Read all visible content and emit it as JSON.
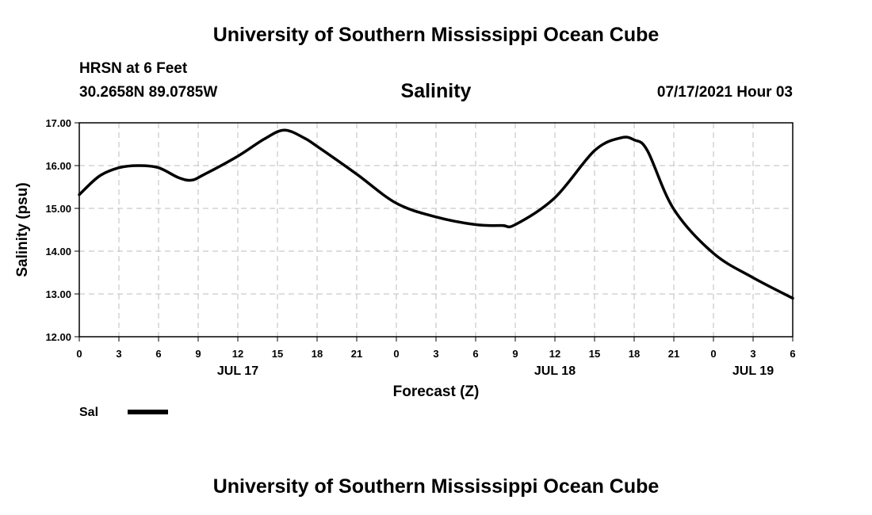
{
  "header": {
    "title": "University of Southern Mississippi Ocean Cube",
    "station_name": "HRSN at 6 Feet",
    "station_coords": "30.2658N  89.0785W",
    "chart_title": "Salinity",
    "run_time": "07/17/2021 Hour 03"
  },
  "footer": {
    "title": "University of Southern Mississippi Ocean Cube"
  },
  "chart_data": {
    "type": "line",
    "title": "Salinity",
    "xlabel": "Forecast (Z)",
    "ylabel": "Salinity (psu)",
    "ylim": [
      12.0,
      17.0
    ],
    "xlim": [
      0,
      54
    ],
    "y_ticks": [
      "12.00",
      "13.00",
      "14.00",
      "15.00",
      "16.00",
      "17.00"
    ],
    "x_ticks": [
      "0",
      "3",
      "6",
      "9",
      "12",
      "15",
      "18",
      "21",
      "0",
      "3",
      "6",
      "9",
      "12",
      "15",
      "18",
      "21",
      "0",
      "3",
      "6"
    ],
    "date_labels": [
      {
        "label": "JUL 17",
        "hour": 12
      },
      {
        "label": "JUL 18",
        "hour": 36
      },
      {
        "label": "JUL 19",
        "hour": 51
      }
    ],
    "grid": true,
    "legend": {
      "position": "bottom-left",
      "entries": [
        {
          "name": "Sal",
          "color": "#000000"
        }
      ]
    },
    "series": [
      {
        "name": "Sal",
        "color": "#000000",
        "x": [
          0,
          1.5,
          3,
          4.5,
          6,
          7.5,
          8.5,
          9.5,
          12,
          14,
          15.5,
          17,
          18,
          21,
          24,
          27,
          30,
          32,
          33,
          36,
          39,
          41,
          42,
          43,
          45,
          48,
          51,
          54
        ],
        "y": [
          15.32,
          15.75,
          15.95,
          16.0,
          15.95,
          15.72,
          15.66,
          15.8,
          16.22,
          16.62,
          16.83,
          16.65,
          16.45,
          15.8,
          15.12,
          14.8,
          14.62,
          14.6,
          14.62,
          15.25,
          16.35,
          16.65,
          16.6,
          16.35,
          14.98,
          13.95,
          13.38,
          12.9
        ]
      }
    ]
  }
}
